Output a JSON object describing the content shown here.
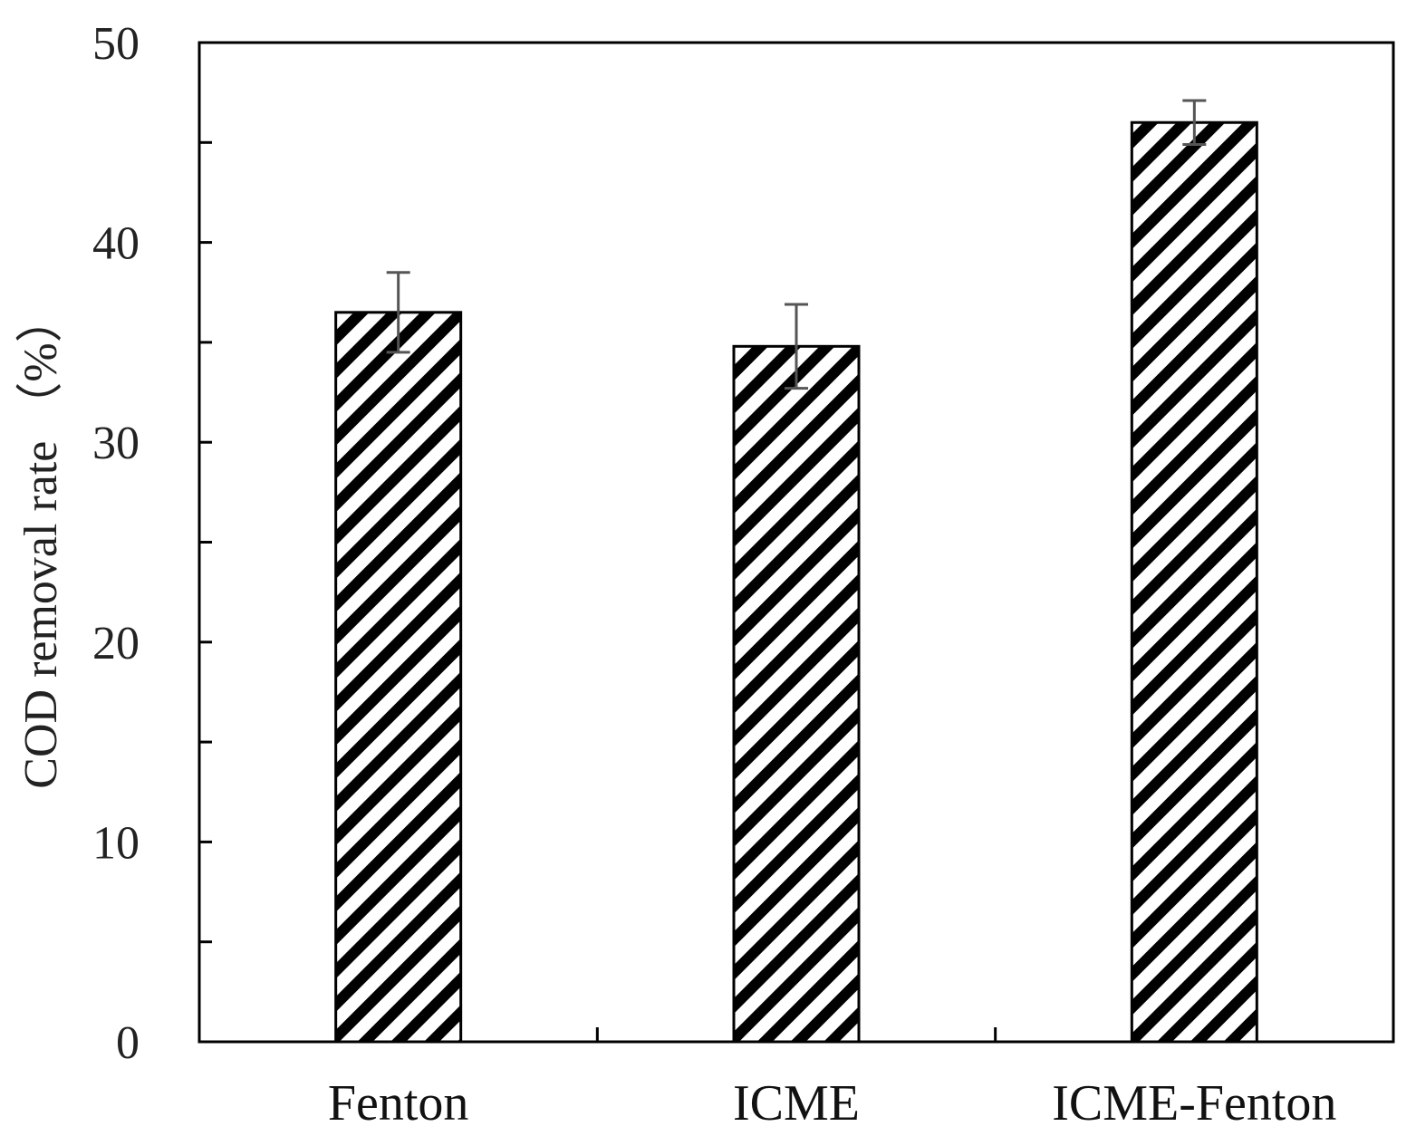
{
  "chart_data": {
    "type": "bar",
    "categories": [
      "Fenton",
      "ICME",
      "ICME-Fenton"
    ],
    "values": [
      36.5,
      34.8,
      46.0
    ],
    "error": [
      2.0,
      2.1,
      1.1
    ],
    "ylabel": "COD removal rate （%）",
    "xlabel": "",
    "ylim": [
      0,
      50
    ],
    "yticks": [
      0,
      10,
      20,
      30,
      40,
      50
    ],
    "ytick_labels": [
      "0",
      "10",
      "20",
      "30",
      "40",
      "50"
    ],
    "grid": false,
    "bar_fill": "diagonal hatch",
    "colors": {
      "stroke": "#000000",
      "background": "#ffffff"
    }
  }
}
